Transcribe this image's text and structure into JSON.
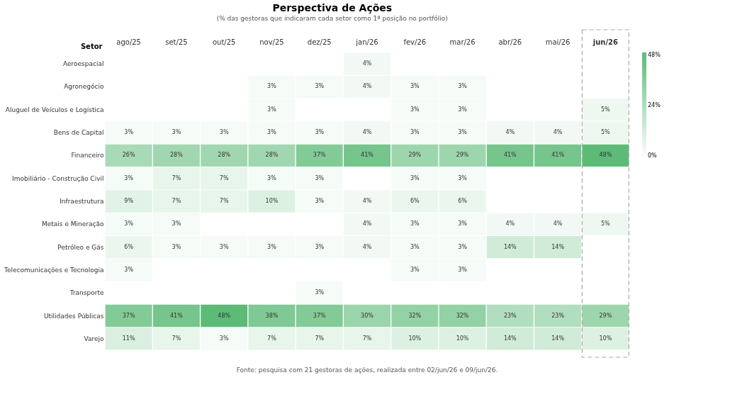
{
  "chart_data": {
    "type": "heatmap",
    "title": "Perspectiva de Ações",
    "subtitle": "(% das gestoras que indicaram cada setor como 1ª posição no portfólio)",
    "ylabel": "Setor",
    "categories": [
      "ago/25",
      "set/25",
      "out/25",
      "nov/25",
      "dez/25",
      "jan/26",
      "fev/26",
      "mar/26",
      "abr/26",
      "mai/26",
      "jun/26"
    ],
    "y_categories": [
      "Aeroespacial",
      "Agronegócio",
      "Aluguel de Veículos e Logística",
      "Bens de Capital",
      "Financeiro",
      "Imobiliário - Construção Civil",
      "Infraestrutura",
      "Metais e Mineração",
      "Petróleo e Gás",
      "Telecomunicações e Tecnologia",
      "Transporte",
      "Utilidades Públicas",
      "Varejo"
    ],
    "cells": [
      [
        null,
        null,
        null,
        null,
        null,
        4,
        null,
        null,
        null,
        null,
        null
      ],
      [
        null,
        null,
        null,
        3,
        3,
        4,
        3,
        3,
        null,
        null,
        null
      ],
      [
        null,
        null,
        null,
        3,
        null,
        null,
        3,
        3,
        null,
        null,
        5
      ],
      [
        3,
        3,
        3,
        3,
        3,
        4,
        3,
        3,
        4,
        4,
        5
      ],
      [
        26,
        28,
        28,
        28,
        37,
        41,
        29,
        29,
        41,
        41,
        48
      ],
      [
        3,
        7,
        7,
        3,
        3,
        null,
        3,
        3,
        null,
        null,
        null
      ],
      [
        9,
        7,
        7,
        10,
        3,
        4,
        6,
        6,
        null,
        null,
        null
      ],
      [
        3,
        3,
        null,
        null,
        null,
        4,
        3,
        3,
        4,
        4,
        5
      ],
      [
        6,
        3,
        3,
        3,
        3,
        4,
        3,
        3,
        14,
        14,
        null
      ],
      [
        3,
        null,
        null,
        null,
        null,
        null,
        3,
        3,
        null,
        null,
        null
      ],
      [
        null,
        null,
        null,
        null,
        3,
        null,
        null,
        null,
        null,
        null,
        null
      ],
      [
        37,
        41,
        48,
        38,
        37,
        30,
        32,
        32,
        23,
        23,
        29
      ],
      [
        11,
        7,
        3,
        7,
        7,
        7,
        10,
        10,
        14,
        14,
        10
      ]
    ],
    "cell_labels": [
      [
        null,
        null,
        null,
        null,
        null,
        "4%",
        null,
        null,
        null,
        null,
        null
      ],
      [
        null,
        null,
        null,
        "3%",
        "3%",
        "4%",
        "3%",
        "3%",
        null,
        null,
        null
      ],
      [
        null,
        null,
        null,
        "3%",
        null,
        null,
        "3%",
        "3%",
        null,
        null,
        "5%"
      ],
      [
        "3%",
        "3%",
        "3%",
        "3%",
        "3%",
        "4%",
        "3%",
        "3%",
        "4%",
        "4%",
        "5%"
      ],
      [
        "26%",
        "28%",
        "28%",
        "28%",
        "37%",
        "41%",
        "29%",
        "29%",
        "41%",
        "41%",
        "48%"
      ],
      [
        "3%",
        "7%",
        "7%",
        "3%",
        "3%",
        null,
        "3%",
        "3%",
        null,
        null,
        null
      ],
      [
        "9%",
        "7%",
        "7%",
        "10%",
        "3%",
        "4%",
        "6%",
        "6%",
        null,
        null,
        null
      ],
      [
        "3%",
        "3%",
        null,
        null,
        null,
        "4%",
        "3%",
        "3%",
        "4%",
        "4%",
        "5%"
      ],
      [
        "6%",
        "3%",
        "3%",
        "3%",
        "3%",
        "4%",
        "3%",
        "3%",
        "14%",
        "14%",
        null
      ],
      [
        "3%",
        null,
        null,
        null,
        null,
        null,
        "3%",
        "3%",
        null,
        null,
        null
      ],
      [
        null,
        null,
        null,
        null,
        "3%",
        null,
        null,
        null,
        null,
        null,
        null
      ],
      [
        "37%",
        "41%",
        "48%",
        "38%",
        "37%",
        "30%",
        "32%",
        "32%",
        "23%",
        "23%",
        "29%"
      ],
      [
        "11%",
        "7%",
        "3%",
        "7%",
        "7%",
        "7%",
        "10%",
        "10%",
        "14%",
        "14%",
        "10%"
      ]
    ],
    "colors": [
      "#ffffff",
      "#5dbb78"
    ],
    "clim": [
      0,
      48
    ],
    "cticks": [
      {
        "value": 0,
        "label": "0%"
      },
      {
        "value": 24,
        "label": "24%"
      },
      {
        "value": 48,
        "label": "48%"
      }
    ],
    "annotations": [
      "Fonte: pesquisa com 21 gestoras de ações, realizada entre 02/jun/26 e 09/jun/26."
    ]
  }
}
